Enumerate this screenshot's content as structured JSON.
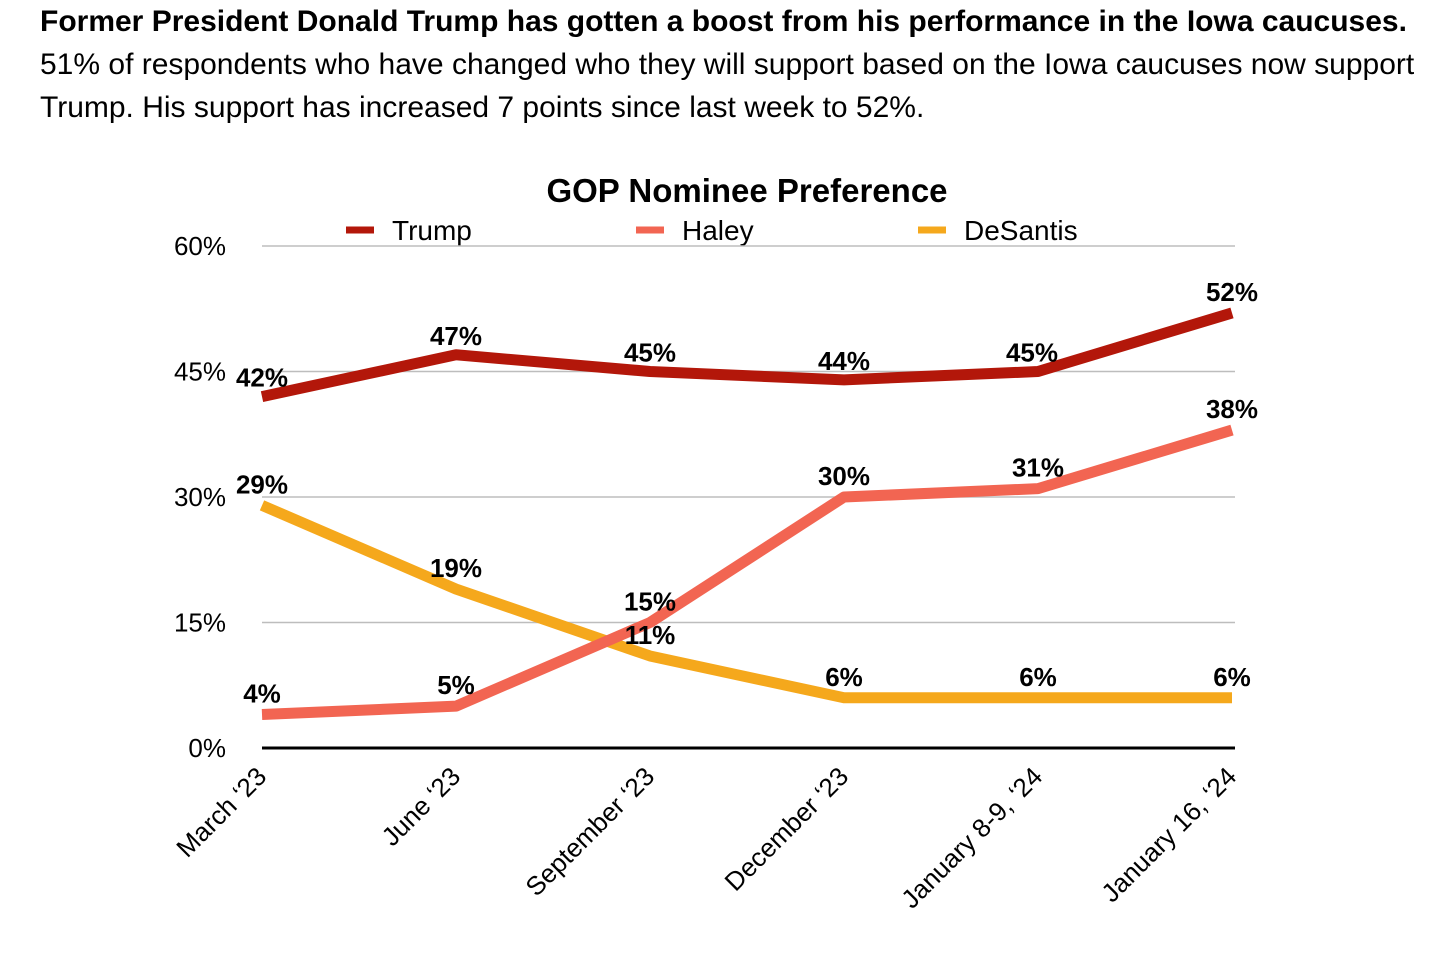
{
  "intro": {
    "bold": "Former President Donald Trump has gotten a boost from his performance in the Iowa caucuses.",
    "rest": "51% of respondents who have changed who they will support based on the Iowa caucuses now support Trump.  His support has increased 7 points since last week to 52%."
  },
  "chart_data": {
    "type": "line",
    "title": "GOP Nominee Preference",
    "categories": [
      "March ‘23",
      "June ‘23",
      "September ‘23",
      "December ‘23",
      "January 8-9, ‘24",
      "January 16, ‘24"
    ],
    "series": [
      {
        "name": "Trump",
        "values": [
          42,
          47,
          45,
          44,
          45,
          52
        ],
        "labels": [
          "42%",
          "47%",
          "45%",
          "44%",
          "45%",
          "52%"
        ],
        "color": "#B3170A"
      },
      {
        "name": "Haley",
        "values": [
          4,
          5,
          15,
          30,
          31,
          38
        ],
        "labels": [
          "4%",
          "5%",
          "15%",
          "30%",
          "31%",
          "38%"
        ],
        "color": "#F26552"
      },
      {
        "name": "DeSantis",
        "values": [
          29,
          19,
          11,
          6,
          6,
          6
        ],
        "labels": [
          "29%",
          "19%",
          "11%",
          "6%",
          "6%",
          "6%"
        ],
        "color": "#F5A81C"
      }
    ],
    "ylim": [
      0,
      60
    ],
    "yticks": [
      0,
      15,
      30,
      45,
      60
    ],
    "ytick_labels": [
      "0%",
      "15%",
      "30%",
      "45%",
      "60%"
    ],
    "xlabel": "",
    "ylabel": "",
    "grid": true,
    "legend": "top"
  }
}
